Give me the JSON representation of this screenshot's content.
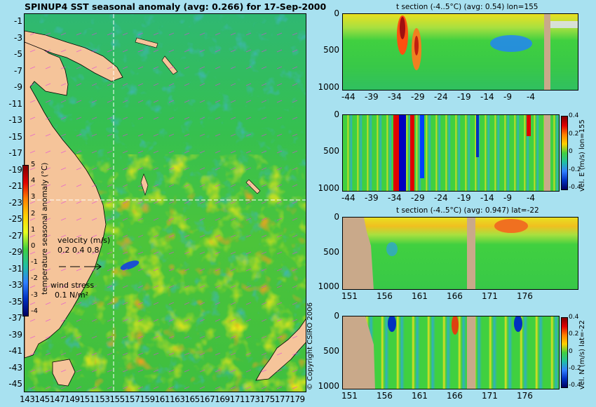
{
  "map": {
    "title": "SPINUP4 SST seasonal anomaly (avg: 0.266) for 17-Sep-2000",
    "y_ticks": [
      "-1",
      "-3",
      "-5",
      "-7",
      "-9",
      "-11",
      "-13",
      "-15",
      "-17",
      "-19",
      "-21",
      "-23",
      "-25",
      "-27",
      "-29",
      "-31",
      "-33",
      "-35",
      "-37",
      "-39",
      "-41",
      "-43",
      "-45"
    ],
    "x_ticks": [
      "143",
      "145",
      "147",
      "149",
      "151",
      "153",
      "155",
      "157",
      "159",
      "161",
      "163",
      "165",
      "167",
      "169",
      "171",
      "173",
      "175",
      "177",
      "179"
    ],
    "colorbar_ticks": [
      "5",
      "4",
      "3",
      "2",
      "1",
      "0",
      "-1",
      "-2",
      "-3",
      "-4"
    ],
    "colorbar_label": "temperature seasonal anomaly (°C)",
    "velocity_label": "velocity (m/s)",
    "velocity_scale": "0.2 0.4 0.8",
    "wind_label": "wind stress",
    "wind_scale": "0.1 N/m²",
    "copyright": "© Copyright CSIRO 2006",
    "crosshair_lon": 155,
    "crosshair_lat": -22,
    "colors": {
      "land": "#f5c49a",
      "ocean_base": "#3cc24a",
      "crosshair": "#ffffff",
      "vectors": "#e040e0"
    }
  },
  "panels": [
    {
      "title": "t section (-4..5°C) (avg: 0.54) lon=155",
      "y_ticks": [
        "0",
        "500",
        "1000"
      ],
      "x_ticks": [
        "-44",
        "-39",
        "-34",
        "-29",
        "-24",
        "-19",
        "-14",
        "-9",
        "-4"
      ],
      "side_label": "",
      "has_colorbar": false
    },
    {
      "title": "",
      "y_ticks": [
        "0",
        "500",
        "1000"
      ],
      "x_ticks": [
        "-44",
        "-39",
        "-34",
        "-29",
        "-24",
        "-19",
        "-14",
        "-9",
        "-4"
      ],
      "side_label": "vel. E (m/s) lon=155",
      "has_colorbar": true,
      "colorbar_ticks": [
        "0.4",
        "0.2",
        "0",
        "-0.2",
        "-0.4"
      ]
    },
    {
      "title": "t section (-4..5°C) (avg: 0.947) lat=-22",
      "y_ticks": [
        "0",
        "500",
        "1000"
      ],
      "x_ticks": [
        "151",
        "156",
        "161",
        "166",
        "171",
        "176"
      ],
      "side_label": "",
      "has_colorbar": false
    },
    {
      "title": "",
      "y_ticks": [
        "0",
        "500",
        "1000"
      ],
      "x_ticks": [
        "151",
        "156",
        "161",
        "166",
        "171",
        "176"
      ],
      "side_label": "vel. N (m/s) lat=-22",
      "has_colorbar": true,
      "colorbar_ticks": [
        "0.4",
        "0.2",
        "0",
        "-0.2",
        "-0.4"
      ]
    }
  ]
}
